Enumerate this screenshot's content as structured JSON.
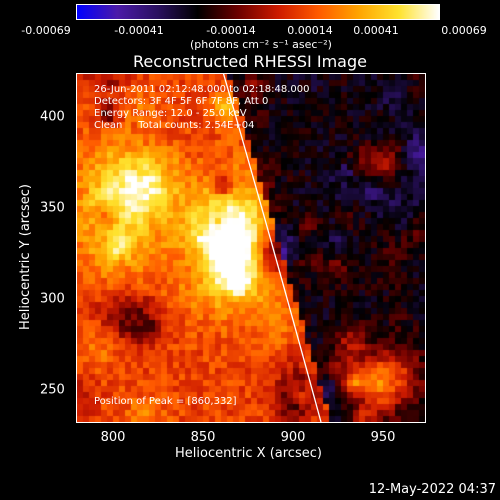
{
  "colorbar": {
    "ticks": [
      "-0.00069",
      "-0.00041",
      "-0.00014",
      "0.00014",
      "0.00041",
      "0.00069"
    ],
    "units": "(photons cm⁻² s⁻¹ asec⁻²)",
    "colormap": [
      "#0000ff",
      "#4b1aa8",
      "#2a1060",
      "#000000",
      "#6b0000",
      "#cc1a00",
      "#ff5a00",
      "#ffa400",
      "#ffe22e",
      "#ffffff"
    ]
  },
  "title": "Reconstructed RHESSI Image",
  "info": {
    "time": "26-Jun-2011 02:12:48.000 to 02:18:48.000",
    "detectors": "Detectors: 3F 4F 5F 6F 7F 8F, Att 0",
    "energy": "Energy Range: 12.0 - 25.0 keV",
    "clean": "Clean     Total counts: 2.54E+04"
  },
  "peak": "Position of Peak = [860,332]",
  "x_axis": {
    "label": "Heliocentric X (arcsec)",
    "ticks": [
      "800",
      "850",
      "900",
      "950"
    ]
  },
  "y_axis": {
    "label": "Heliocentric Y (arcsec)",
    "ticks": [
      "400",
      "350",
      "300",
      "250"
    ]
  },
  "timestamp": "12-May-2022 04:37"
}
